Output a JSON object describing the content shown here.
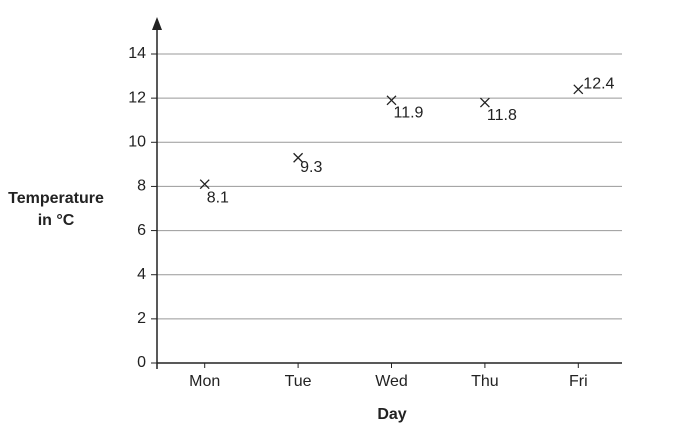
{
  "chart_data": {
    "type": "scatter",
    "y_label": [
      "Temperature",
      "in °C"
    ],
    "x_label": "Day",
    "categories": [
      "Mon",
      "Tue",
      "Wed",
      "Thu",
      "Fri"
    ],
    "values": [
      8.1,
      9.3,
      11.9,
      11.8,
      12.4
    ],
    "color": "#222222",
    "ylim": [
      0,
      14
    ],
    "yticks": [
      0,
      2,
      4,
      6,
      8,
      10,
      12,
      14
    ],
    "grid": true
  }
}
